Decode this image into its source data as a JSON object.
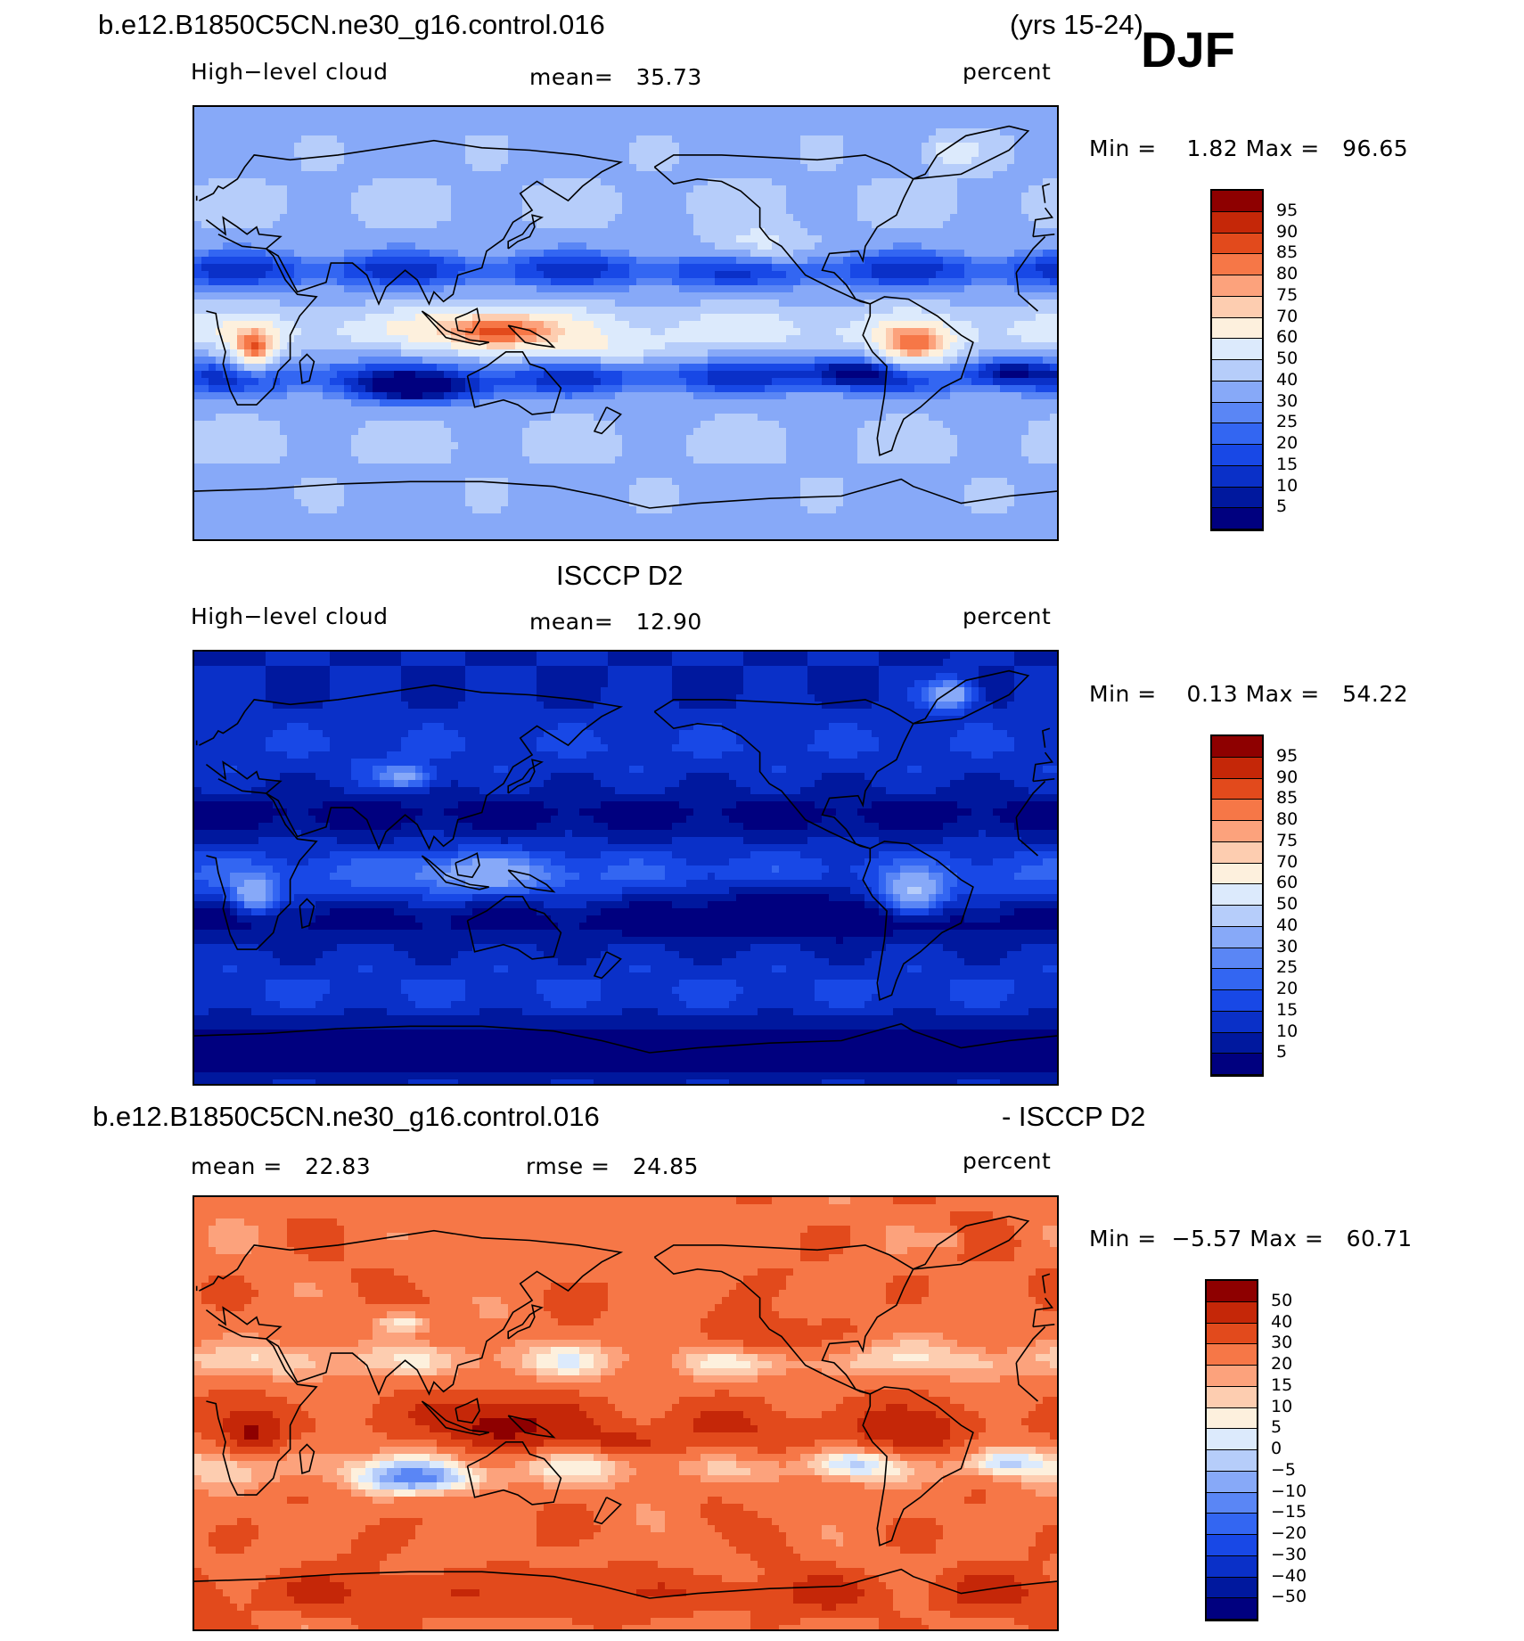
{
  "header": {
    "case_top": "b.e12.B1850C5CN.ne30_g16.control.016",
    "years": "(yrs 15-24)",
    "season": "DJF"
  },
  "panels": [
    {
      "title": "",
      "variable": "High−level cloud",
      "mean_text": "mean=   35.73",
      "units": "percent",
      "minmax": "Min =    1.82 Max =   96.65",
      "scale": "cloud",
      "field": "model"
    },
    {
      "title": "ISCCP D2",
      "variable": "High−level cloud",
      "mean_text": "mean=   12.90",
      "units": "percent",
      "minmax": "Min =    0.13 Max =   54.22",
      "scale": "cloud",
      "field": "obs"
    },
    {
      "title_left": "b.e12.B1850C5CN.ne30_g16.control.016",
      "title_right": "- ISCCP D2",
      "mean_text": "mean =   22.83",
      "rmse_text": "rmse =   24.85",
      "units": "percent",
      "minmax": "Min =  −5.57 Max =   60.71",
      "scale": "diff",
      "field": "diff"
    }
  ],
  "scales": {
    "cloud": {
      "levels": [
        "5",
        "10",
        "15",
        "20",
        "25",
        "30",
        "40",
        "50",
        "60",
        "70",
        "75",
        "80",
        "85",
        "90",
        "95"
      ],
      "colors": [
        "#00007f",
        "#00189e",
        "#0a30c8",
        "#1848e6",
        "#3366f2",
        "#5a86f5",
        "#87a9f8",
        "#b6cdfa",
        "#dceafc",
        "#fdf0dd",
        "#fdcdb0",
        "#fca27c",
        "#f67747",
        "#e24a1c",
        "#c52708",
        "#8e0000"
      ]
    },
    "diff": {
      "levels": [
        "−50",
        "−40",
        "−30",
        "−20",
        "−15",
        "−10",
        "−5",
        "0",
        "5",
        "10",
        "15",
        "20",
        "30",
        "40",
        "50"
      ],
      "colors": [
        "#00007f",
        "#00189e",
        "#0a30c8",
        "#1848e6",
        "#3366f2",
        "#5a86f5",
        "#87a9f8",
        "#b6cdfa",
        "#dceafc",
        "#fdf0dd",
        "#fdcdb0",
        "#fca27c",
        "#f67747",
        "#e24a1c",
        "#c52708",
        "#8e0000"
      ]
    }
  }
}
